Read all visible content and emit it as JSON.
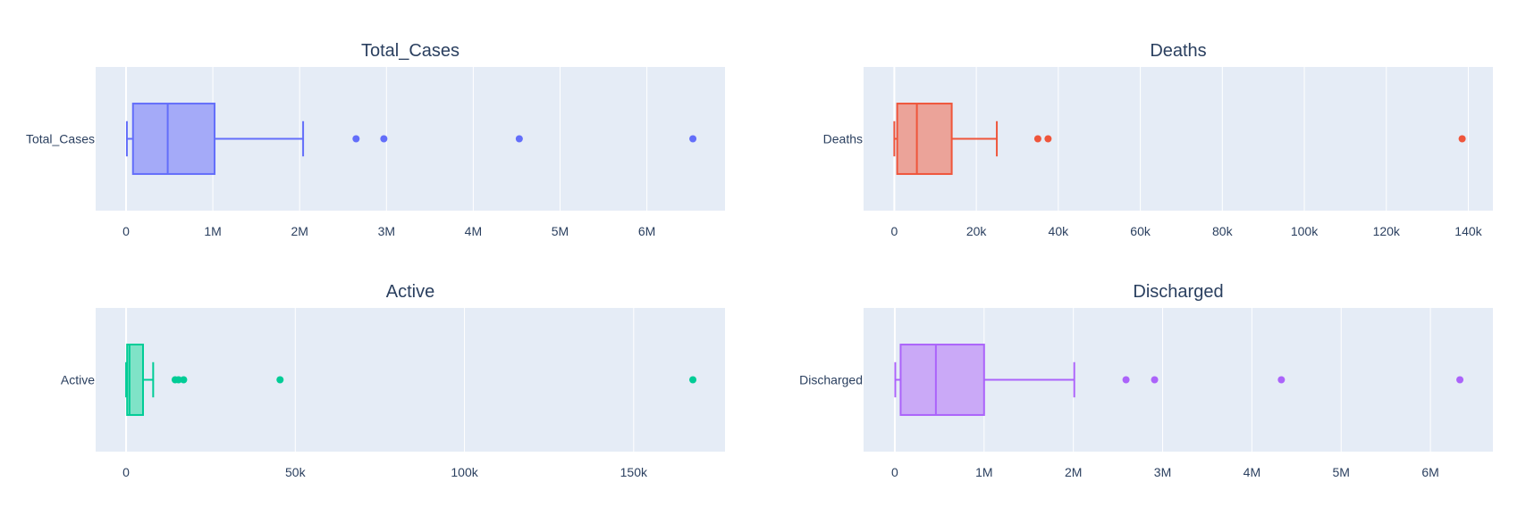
{
  "colors": {
    "plot_bg": "#e5ecf6",
    "grid": "#ffffff",
    "text": "#2a3f5f"
  },
  "chart_data": [
    {
      "type": "box",
      "title": "Total_Cases",
      "category": "Total_Cases",
      "color": "#636efa",
      "fill": "#a4aaf8",
      "xlim": [
        -350000,
        6900000
      ],
      "ticks": [
        0,
        1000000,
        2000000,
        3000000,
        4000000,
        5000000,
        6000000
      ],
      "tick_labels": [
        "0",
        "1M",
        "2M",
        "3M",
        "4M",
        "5M",
        "6M"
      ],
      "box": {
        "min": 10000,
        "q1": 80000,
        "median": 480000,
        "q3": 1020000,
        "max": 2040000
      },
      "outliers": [
        2650000,
        2970000,
        4530000,
        6530000
      ]
    },
    {
      "type": "box",
      "title": "Deaths",
      "category": "Deaths",
      "color": "#ef553b",
      "fill": "#eba399",
      "xlim": [
        -7500,
        146000
      ],
      "ticks": [
        0,
        20000,
        40000,
        60000,
        80000,
        100000,
        120000,
        140000
      ],
      "tick_labels": [
        "0",
        "20k",
        "40k",
        "60k",
        "80k",
        "100k",
        "120k",
        "140k"
      ],
      "box": {
        "min": 0,
        "q1": 700,
        "median": 5500,
        "q3": 14000,
        "max": 25000
      },
      "outliers": [
        35000,
        37500,
        138500
      ]
    },
    {
      "type": "box",
      "title": "Active",
      "category": "Active",
      "color": "#00cc96",
      "fill": "#7fe3c7",
      "xlim": [
        -9000,
        177000
      ],
      "ticks": [
        0,
        50000,
        100000,
        150000
      ],
      "tick_labels": [
        "0",
        "50k",
        "100k",
        "150k"
      ],
      "box": {
        "min": 0,
        "q1": 300,
        "median": 1000,
        "q3": 5000,
        "max": 8000
      },
      "outliers": [
        14500,
        15500,
        17000,
        45500,
        167500
      ]
    },
    {
      "type": "box",
      "title": "Discharged",
      "category": "Discharged",
      "color": "#ab63fa",
      "fill": "#caa9f7",
      "xlim": [
        -350000,
        6700000
      ],
      "ticks": [
        0,
        1000000,
        2000000,
        3000000,
        4000000,
        5000000,
        6000000
      ],
      "tick_labels": [
        "0",
        "1M",
        "2M",
        "3M",
        "4M",
        "5M",
        "6M"
      ],
      "box": {
        "min": 5000,
        "q1": 65000,
        "median": 460000,
        "q3": 1000000,
        "max": 2010000
      },
      "outliers": [
        2590000,
        2910000,
        4330000,
        6330000
      ]
    }
  ]
}
